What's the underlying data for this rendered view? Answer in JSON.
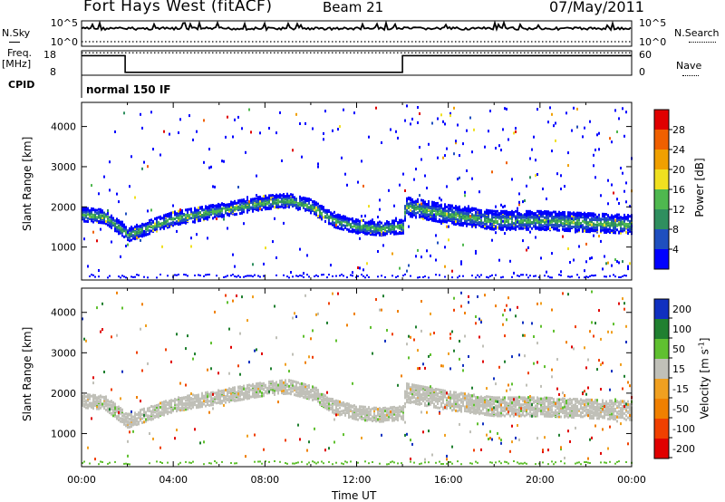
{
  "header": {
    "station": "Fort Hays West (fitACF)",
    "beam": "Beam 21",
    "date": "07/May/2011"
  },
  "labels": {
    "nsky": "N.Sky",
    "freq": "Freq.",
    "freq_unit": "[MHz]",
    "cpid": "CPID",
    "nsearch": "N.Search",
    "nave": "Nave",
    "cpid_value": "normal 150 IF"
  },
  "colors": {
    "power_scale": [
      "#0000ff",
      "#1f4fbf",
      "#2f8f5f",
      "#4fb84f",
      "#f0e020",
      "#f0a000",
      "#f06000",
      "#e00000"
    ],
    "velocity_scale": [
      "#1030c0",
      "#208030",
      "#60c030",
      "#c0c0b8",
      "#f0a020",
      "#f08000",
      "#f04000",
      "#e00000"
    ]
  },
  "chart_data": [
    {
      "type": "line",
      "name": "noise-panel",
      "y_left_ticks": [
        "10^5",
        "10^0"
      ],
      "y_right_ticks": [
        "10^5",
        "10^0"
      ],
      "series": [
        {
          "name": "N.Sky",
          "style": "solid"
        },
        {
          "name": "N.Search",
          "style": "dotted"
        }
      ]
    },
    {
      "type": "line",
      "name": "frequency-panel",
      "y_left_ticks": [
        "18",
        "8"
      ],
      "y_right_ticks": [
        "60",
        "0"
      ],
      "ylim_left": [
        8,
        18
      ],
      "ylim_right": [
        0,
        60
      ],
      "freq_segments": [
        {
          "t0": 0.0,
          "t1": 1.9,
          "freq": 16.0
        },
        {
          "t0": 1.9,
          "t1": 14.0,
          "freq": 9.2
        },
        {
          "t0": 14.0,
          "t1": 24.0,
          "freq": 16.0
        }
      ],
      "nave": 55
    },
    {
      "type": "heatmap",
      "name": "power-panel",
      "ylabel": "Slant Range [km]",
      "y_ticks": [
        1000,
        2000,
        3000,
        4000
      ],
      "ylim": [
        180,
        4600
      ],
      "xlim": [
        0,
        24
      ],
      "colorbar": {
        "label": "Power [dB]",
        "ticks": [
          "4",
          "8",
          "12",
          "16",
          "20",
          "24",
          "28"
        ]
      },
      "band": [
        {
          "t": 0.0,
          "r": 1850
        },
        {
          "t": 1.0,
          "r": 1800
        },
        {
          "t": 2.0,
          "r": 1350
        },
        {
          "t": 3.0,
          "r": 1550
        },
        {
          "t": 4.0,
          "r": 1750
        },
        {
          "t": 6.0,
          "r": 1950
        },
        {
          "t": 8.0,
          "r": 2150
        },
        {
          "t": 9.0,
          "r": 2200
        },
        {
          "t": 10.0,
          "r": 2050
        },
        {
          "t": 11.0,
          "r": 1700
        },
        {
          "t": 12.0,
          "r": 1550
        },
        {
          "t": 13.0,
          "r": 1500
        },
        {
          "t": 14.0,
          "r": 1550
        },
        {
          "t": 14.1,
          "r": 2050
        },
        {
          "t": 16.0,
          "r": 1850
        },
        {
          "t": 18.0,
          "r": 1700
        },
        {
          "t": 20.0,
          "r": 1700
        },
        {
          "t": 22.0,
          "r": 1650
        },
        {
          "t": 24.0,
          "r": 1600
        }
      ]
    },
    {
      "type": "heatmap",
      "name": "velocity-panel",
      "ylabel": "Slant Range [km]",
      "xlabel": "Time UT",
      "y_ticks": [
        1000,
        2000,
        3000,
        4000
      ],
      "ylim": [
        180,
        4600
      ],
      "xlim": [
        0,
        24
      ],
      "x_ticks": [
        "00:00",
        "04:00",
        "08:00",
        "12:00",
        "16:00",
        "20:00",
        "00:00"
      ],
      "colorbar": {
        "label": "Velocity [m s^-1]",
        "ticks": [
          "200",
          "100",
          "50",
          "15",
          "-15",
          "-50",
          "-100",
          "-200"
        ]
      }
    }
  ]
}
